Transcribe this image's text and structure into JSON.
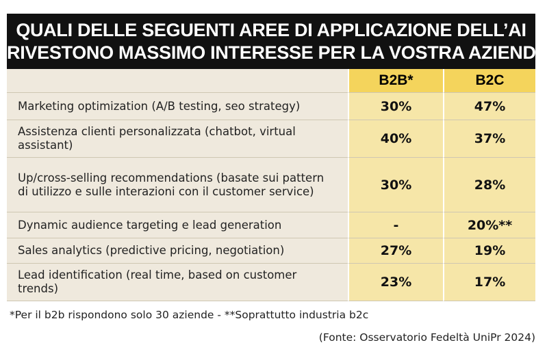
{
  "title": [
    "QUALI DELLE SEGUENTI AREE DI APPLICAZIONE DELL’AI",
    "RIVESTONO MASSIMO INTERESSE PER LA VOSTRA AZIENDA?"
  ],
  "table": {
    "columns": [
      "B2B*",
      "B2C"
    ],
    "rows": [
      [
        "Marketing optimization (A/B testing, seo strategy)",
        "30%",
        "47%"
      ],
      [
        "Assistenza clienti personalizzata (chatbot, virtual assistant)",
        "40%",
        "37%"
      ],
      [
        "Up/cross-selling recommendations (basate sui pattern di utilizzo e sulle interazioni con il customer service)",
        "30%",
        "28%"
      ],
      [
        "Dynamic audience targeting e lead generation",
        "-",
        "20%**"
      ],
      [
        "Sales analytics (predictive pricing, negotiation)",
        "27%",
        "19%"
      ],
      [
        "Lead identification (real time, based on customer trends)",
        "23%",
        "17%"
      ]
    ]
  },
  "note": "*Per il b2b rispondono solo 30 aziende - **Soprattutto industria b2c",
  "source": "(Fonte: Osservatorio Fedeltà UniPr 2024)"
}
